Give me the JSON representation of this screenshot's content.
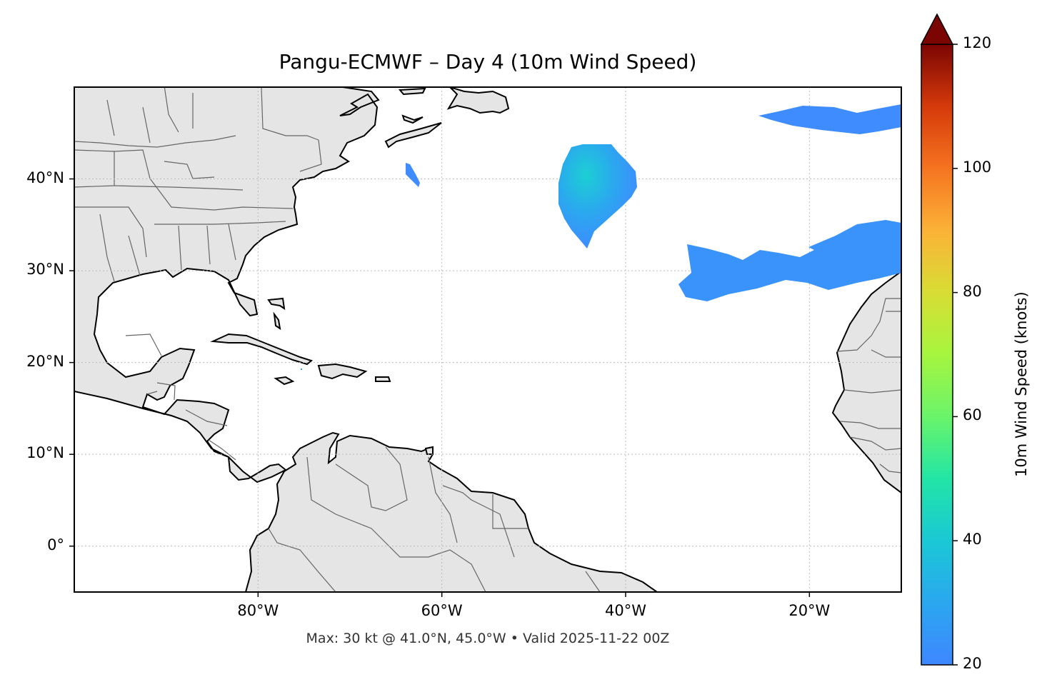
{
  "title": "Pangu-ECMWF – Day 4 (10m Wind Speed)",
  "footer": "Max: 30 kt @ 41.0°N, 45.0°W • Valid 2025-11-22 00Z",
  "map": {
    "lon_range": [
      -100,
      -10
    ],
    "lat_range": [
      -5,
      50
    ],
    "lat_ticks": [
      {
        "value": 40,
        "label": "40°N"
      },
      {
        "value": 30,
        "label": "30°N"
      },
      {
        "value": 20,
        "label": "20°N"
      },
      {
        "value": 10,
        "label": "10°N"
      },
      {
        "value": 0,
        "label": "0°"
      }
    ],
    "lon_ticks": [
      {
        "value": -80,
        "label": "80°W"
      },
      {
        "value": -60,
        "label": "60°W"
      },
      {
        "value": -40,
        "label": "40°W"
      },
      {
        "value": -20,
        "label": "20°W"
      }
    ],
    "land_color": "#e5e5e5",
    "coast_color": "#000000",
    "border_color": "#666666",
    "gridlines": "dotted"
  },
  "colorbar": {
    "label": "10m Wind Speed (knots)",
    "range": [
      20,
      120
    ],
    "ticks": [
      {
        "value": 20,
        "label": "20"
      },
      {
        "value": 40,
        "label": "40"
      },
      {
        "value": 60,
        "label": "60"
      },
      {
        "value": 80,
        "label": "80"
      },
      {
        "value": 100,
        "label": "100"
      },
      {
        "value": 120,
        "label": "120"
      }
    ],
    "colormap": "turbo",
    "extend": "max"
  },
  "wind_features": [
    {
      "name": "mid-atlantic-maximum",
      "max_kt": 30,
      "peak_lat": 41.0,
      "peak_lon": -45.0
    }
  ]
}
